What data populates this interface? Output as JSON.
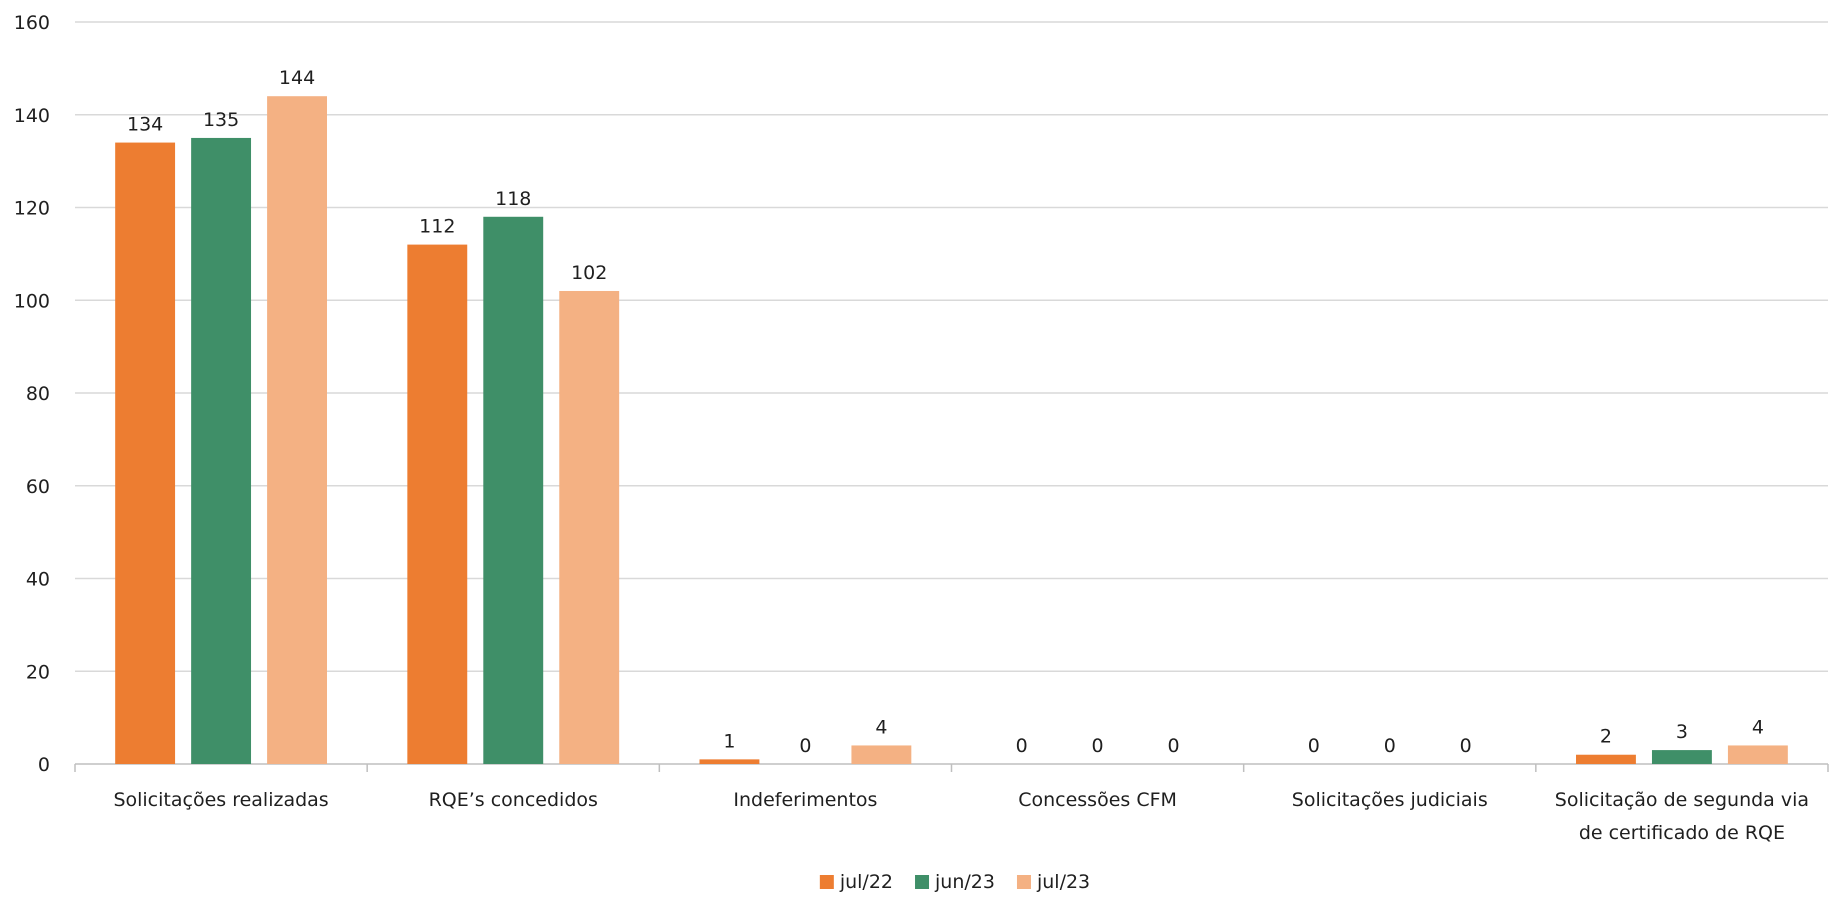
{
  "chart_data": {
    "type": "bar",
    "title": "",
    "xlabel": "",
    "ylabel": "",
    "ylim": [
      0,
      160
    ],
    "yticks": [
      0,
      20,
      40,
      60,
      80,
      100,
      120,
      140,
      160
    ],
    "grid": true,
    "legend_position": "bottom",
    "categories": [
      "Solicitações realizadas",
      "RQE’s concedidos",
      "Indeferimentos",
      "Concessões CFM",
      "Solicitações judiciais",
      "Solicitação de segunda via de certificado de RQE"
    ],
    "series": [
      {
        "name": "jul/22",
        "color": "#ED7D31",
        "values": [
          134,
          112,
          1,
          0,
          0,
          2
        ]
      },
      {
        "name": "jun/23",
        "color": "#3F8F68",
        "values": [
          135,
          118,
          0,
          0,
          0,
          3
        ]
      },
      {
        "name": "jul/23",
        "color": "#F4B183",
        "values": [
          144,
          102,
          4,
          0,
          0,
          4
        ]
      }
    ]
  }
}
